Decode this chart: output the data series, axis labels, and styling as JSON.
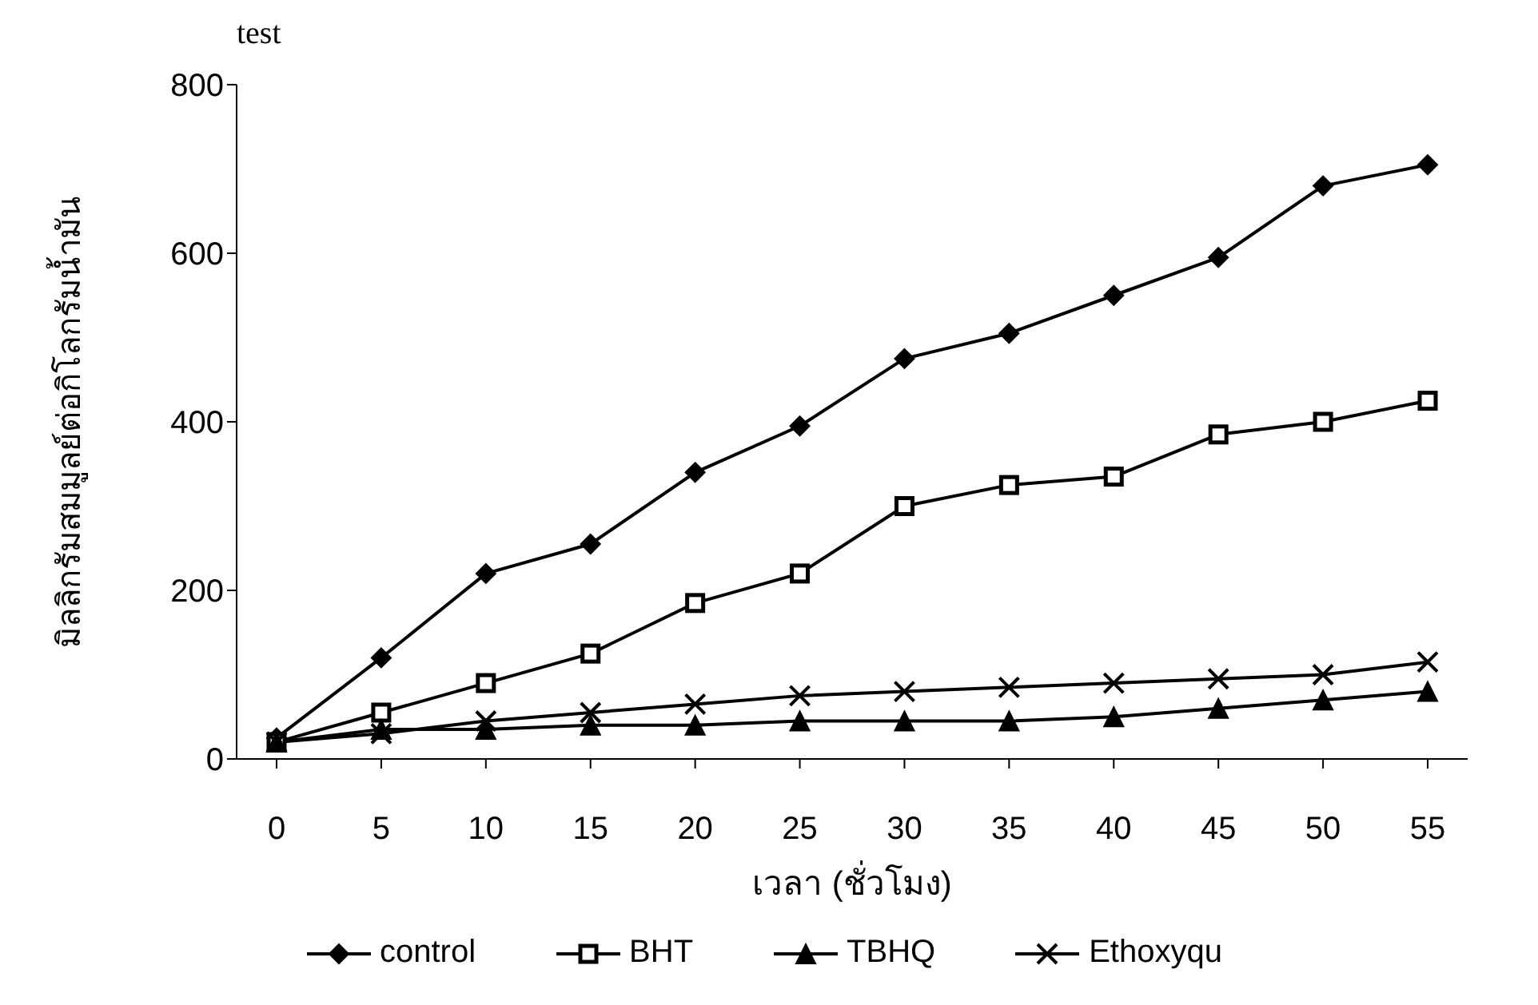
{
  "chart_data": {
    "type": "line",
    "xlabel": "เวลา (ชั่วโมง)",
    "ylabel": "มิลลิกรัมสมมูลย์ต่อกิโลกรัมน้ำมัน",
    "annotations": [
      "test"
    ],
    "categories": [
      "0",
      "5",
      "10",
      "15",
      "20",
      "25",
      "30",
      "35",
      "40",
      "45",
      "50",
      "55"
    ],
    "ylim": [
      0,
      800
    ],
    "yticks": [
      0,
      200,
      400,
      600,
      800
    ],
    "grid": false,
    "legend": "bottom",
    "series": [
      {
        "name": "control",
        "color": "#000000",
        "marker": "diamond",
        "values": [
          25,
          120,
          220,
          255,
          340,
          395,
          475,
          505,
          550,
          595,
          680,
          705
        ]
      },
      {
        "name": "BHT",
        "color": "#000000",
        "marker": "square",
        "values": [
          20,
          55,
          90,
          125,
          185,
          220,
          300,
          325,
          335,
          385,
          400,
          425
        ]
      },
      {
        "name": "TBHQ",
        "color": "#000000",
        "marker": "triangle",
        "values": [
          20,
          35,
          35,
          40,
          40,
          45,
          45,
          45,
          50,
          60,
          70,
          80
        ]
      },
      {
        "name": "Ethoxyqu",
        "color": "#000000",
        "marker": "cross",
        "values": [
          20,
          30,
          45,
          55,
          65,
          75,
          80,
          85,
          90,
          95,
          100,
          115
        ]
      }
    ]
  }
}
